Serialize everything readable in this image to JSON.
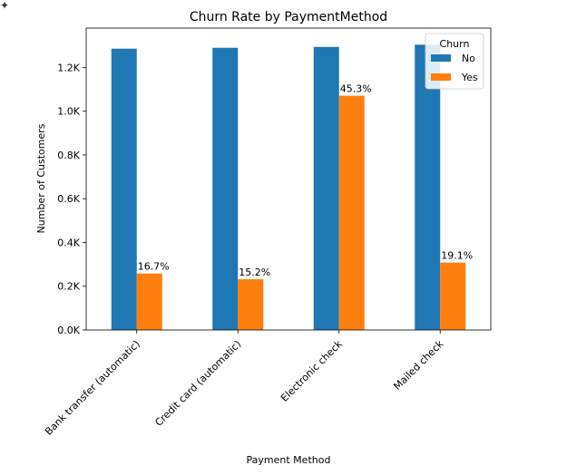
{
  "corner_glyph": "✦",
  "chart_data": {
    "type": "bar",
    "title": "Churn Rate by PaymentMethod",
    "xlabel": "Payment Method",
    "ylabel": "Number of Customers",
    "categories": [
      "Bank transfer (automatic)",
      "Credit card (automatic)",
      "Electronic check",
      "Mailed check"
    ],
    "series": [
      {
        "name": "No",
        "color": "#1f77b4",
        "values": [
          1286,
          1290,
          1294,
          1304
        ]
      },
      {
        "name": "Yes",
        "color": "#ff7f0e",
        "values": [
          258,
          232,
          1071,
          308
        ]
      }
    ],
    "data_labels": [
      "16.7%",
      "15.2%",
      "45.3%",
      "19.1%"
    ],
    "ylim": [
      0,
      1380
    ],
    "yticks": [
      0,
      200,
      400,
      600,
      800,
      1000,
      1200
    ],
    "ytick_labels": [
      "0.0K",
      "0.2K",
      "0.4K",
      "0.6K",
      "0.8K",
      "1.0K",
      "1.2K"
    ],
    "legend": {
      "title": "Churn",
      "position": "top-right"
    },
    "grid": false
  }
}
